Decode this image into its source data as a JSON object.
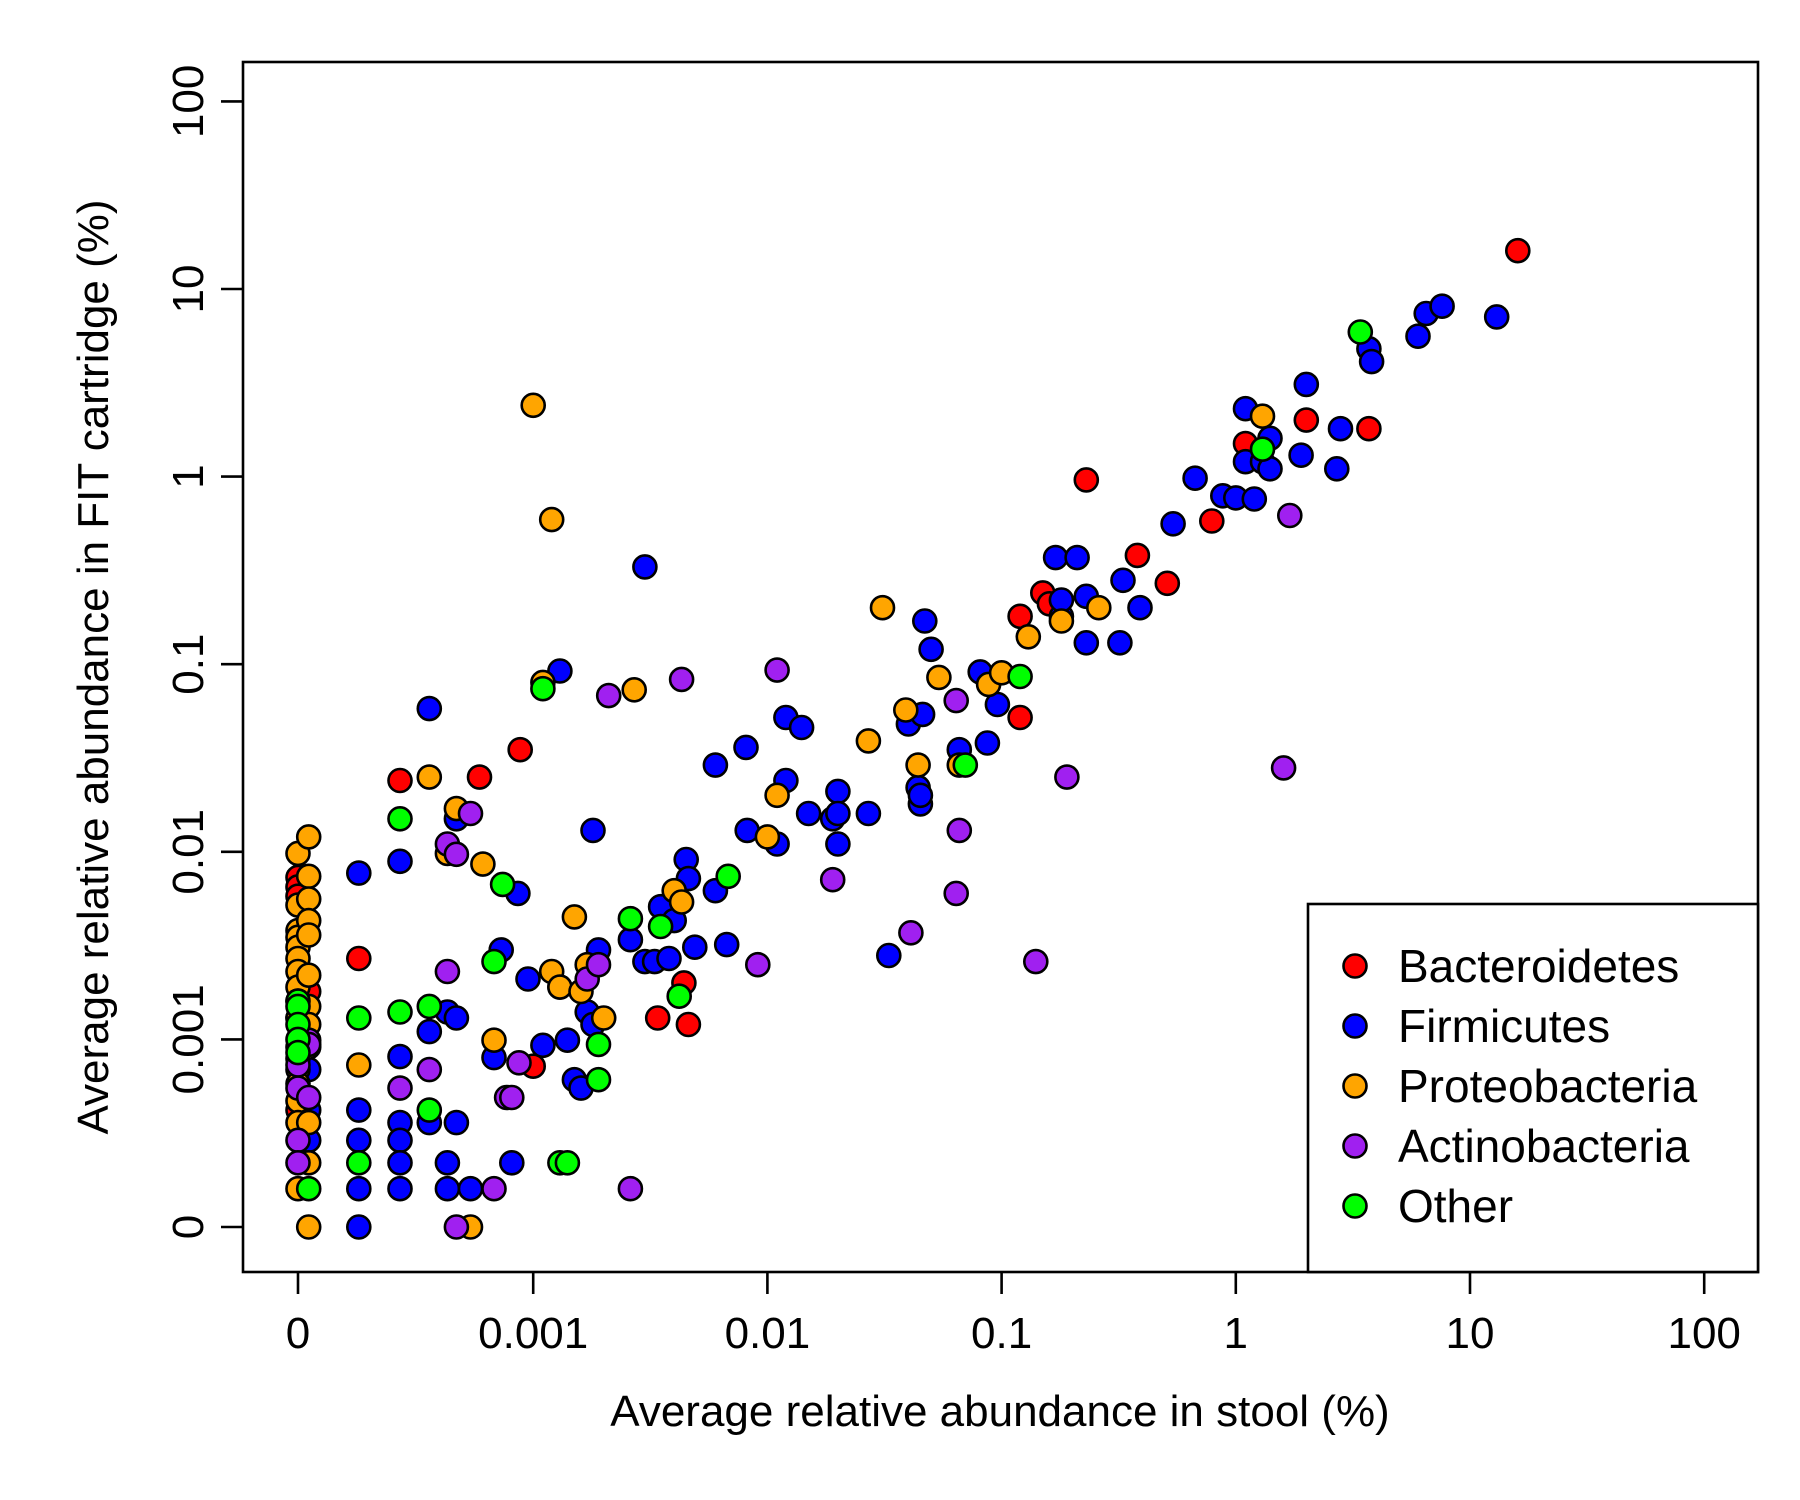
{
  "chart_data": {
    "type": "scatter",
    "title": "",
    "xlabel": "Average relative abundance in stool (%)",
    "ylabel": "Average relative abundance in FIT cartridge (%)",
    "x_scale": "log",
    "y_scale": "log",
    "x_ticks": [
      {
        "value": 0,
        "label": "0"
      },
      {
        "value": 0.001,
        "label": "0.001"
      },
      {
        "value": 0.01,
        "label": "0.01"
      },
      {
        "value": 0.1,
        "label": "0.1"
      },
      {
        "value": 1,
        "label": "1"
      },
      {
        "value": 10,
        "label": "10"
      },
      {
        "value": 100,
        "label": "100"
      }
    ],
    "y_ticks": [
      {
        "value": 0,
        "label": "0"
      },
      {
        "value": 0.001,
        "label": "0.001"
      },
      {
        "value": 0.01,
        "label": "0.01"
      },
      {
        "value": 0.1,
        "label": "0.1"
      },
      {
        "value": 1,
        "label": "1"
      },
      {
        "value": 10,
        "label": "10"
      },
      {
        "value": 100,
        "label": "100"
      }
    ],
    "grid": false,
    "legend_position": "bottom-right",
    "series": [
      {
        "name": "Bacteroidetes",
        "color": "#ff0000",
        "points": [
          [
            0,
            0.0073
          ],
          [
            0,
            0.0065
          ],
          [
            0,
            0.0058
          ],
          [
            0,
            0.00042
          ],
          [
            0.00011,
            0.0018
          ],
          [
            0.00018,
            0.0027
          ],
          [
            0.00027,
            0.024
          ],
          [
            0.00059,
            0.025
          ],
          [
            0.00088,
            0.035
          ],
          [
            0.001,
            0.00072
          ],
          [
            0.0013,
            0.0019
          ],
          [
            0.0034,
            0.0013
          ],
          [
            0.0044,
            0.002
          ],
          [
            0.0046,
            0.0012
          ],
          [
            0.12,
            0.052
          ],
          [
            0.12,
            0.18
          ],
          [
            0.15,
            0.24
          ],
          [
            0.16,
            0.21
          ],
          [
            0.23,
            0.96
          ],
          [
            0.38,
            0.38
          ],
          [
            0.51,
            0.27
          ],
          [
            0.79,
            0.58
          ],
          [
            1.1,
            1.5
          ],
          [
            2.0,
            2.0
          ],
          [
            3.7,
            1.8
          ],
          [
            16,
            16
          ]
        ]
      },
      {
        "name": "Firmicutes",
        "color": "#0000ff",
        "points": [
          [
            0,
            0.0013
          ],
          [
            0.00011,
            0.00069
          ],
          [
            0.00011,
            0.00042
          ],
          [
            0.00011,
            0.00029
          ],
          [
            0.00018,
            0.0077
          ],
          [
            0.00018,
            0.00042
          ],
          [
            0.00018,
            0.00029
          ],
          [
            0.00018,
            0.00016
          ],
          [
            0.00018,
            0
          ],
          [
            0.00027,
            0.0089
          ],
          [
            0.00027,
            0.00081
          ],
          [
            0.00027,
            0.00036
          ],
          [
            0.00027,
            0.00029
          ],
          [
            0.00027,
            0.00022
          ],
          [
            0.00027,
            0.00016
          ],
          [
            0.00036,
            0.058
          ],
          [
            0.00036,
            0.0011
          ],
          [
            0.00036,
            0.00036
          ],
          [
            0.00043,
            0.0014
          ],
          [
            0.00043,
            0.00022
          ],
          [
            0.00043,
            0.00016
          ],
          [
            0.00047,
            0.015
          ],
          [
            0.00047,
            0.0013
          ],
          [
            0.00047,
            0.00036
          ],
          [
            0.00054,
            0.00016
          ],
          [
            0.00068,
            0.0008
          ],
          [
            0.00073,
            0.003
          ],
          [
            0.00081,
            0.00022
          ],
          [
            0.00086,
            0.006
          ],
          [
            0.00095,
            0.0021
          ],
          [
            0.0011,
            0.00093
          ],
          [
            0.0013,
            0.092
          ],
          [
            0.0014,
            0.00099
          ],
          [
            0.0015,
            0.00061
          ],
          [
            0.0016,
            0.00055
          ],
          [
            0.0017,
            0.0014
          ],
          [
            0.0018,
            0.013
          ],
          [
            0.0018,
            0.0012
          ],
          [
            0.0019,
            0.003
          ],
          [
            0.0026,
            0.0034
          ],
          [
            0.003,
            0.33
          ],
          [
            0.003,
            0.0026
          ],
          [
            0.0033,
            0.0026
          ],
          [
            0.0035,
            0.0051
          ],
          [
            0.0038,
            0.0027
          ],
          [
            0.004,
            0.0043
          ],
          [
            0.0045,
            0.0091
          ],
          [
            0.0046,
            0.0072
          ],
          [
            0.0049,
            0.0031
          ],
          [
            0.006,
            0.0062
          ],
          [
            0.006,
            0.029
          ],
          [
            0.0067,
            0.0032
          ],
          [
            0.0081,
            0.036
          ],
          [
            0.0082,
            0.013
          ],
          [
            0.011,
            0.011
          ],
          [
            0.012,
            0.024
          ],
          [
            0.012,
            0.052
          ],
          [
            0.014,
            0.046
          ],
          [
            0.015,
            0.016
          ],
          [
            0.019,
            0.015
          ],
          [
            0.02,
            0.021
          ],
          [
            0.02,
            0.016
          ],
          [
            0.02,
            0.011
          ],
          [
            0.027,
            0.016
          ],
          [
            0.033,
            0.0028
          ],
          [
            0.04,
            0.048
          ],
          [
            0.044,
            0.022
          ],
          [
            0.045,
            0.018
          ],
          [
            0.045,
            0.02
          ],
          [
            0.046,
            0.054
          ],
          [
            0.047,
            0.17
          ],
          [
            0.05,
            0.12
          ],
          [
            0.066,
            0.035
          ],
          [
            0.081,
            0.091
          ],
          [
            0.087,
            0.038
          ],
          [
            0.096,
            0.061
          ],
          [
            0.17,
            0.37
          ],
          [
            0.18,
            0.18
          ],
          [
            0.18,
            0.22
          ],
          [
            0.21,
            0.37
          ],
          [
            0.23,
            0.13
          ],
          [
            0.23,
            0.23
          ],
          [
            0.32,
            0.13
          ],
          [
            0.33,
            0.28
          ],
          [
            0.39,
            0.2
          ],
          [
            0.54,
            0.56
          ],
          [
            0.67,
            0.98
          ],
          [
            0.88,
            0.79
          ],
          [
            1.0,
            0.77
          ],
          [
            1.1,
            2.3
          ],
          [
            1.1,
            1.2
          ],
          [
            1.2,
            0.76
          ],
          [
            1.3,
            1.2
          ],
          [
            1.4,
            1.1
          ],
          [
            1.4,
            1.6
          ],
          [
            1.9,
            1.3
          ],
          [
            2.0,
            3.1
          ],
          [
            2.7,
            1.1
          ],
          [
            2.8,
            1.8
          ],
          [
            3.7,
            4.8
          ],
          [
            3.8,
            4.1
          ],
          [
            6.0,
            5.6
          ],
          [
            6.5,
            7.4
          ],
          [
            7.6,
            8.1
          ],
          [
            13,
            7.1
          ]
        ]
      },
      {
        "name": "Proteobacteria",
        "color": "#ffa500",
        "points": [
          [
            0,
            0.0098
          ],
          [
            0,
            0.0052
          ],
          [
            0,
            0.0038
          ],
          [
            0,
            0.0035
          ],
          [
            0,
            0.0031
          ],
          [
            0,
            0.0027
          ],
          [
            0,
            0.0023
          ],
          [
            0,
            0.0019
          ],
          [
            0,
            0.0016
          ],
          [
            0,
            0.0013
          ],
          [
            0,
            0.00091
          ],
          [
            0,
            0.00079
          ],
          [
            0,
            0.00069
          ],
          [
            0,
            0.00058
          ],
          [
            0,
            0.00047
          ],
          [
            0,
            0.00036
          ],
          [
            0,
            0.00016
          ],
          [
            0.00011,
            0.012
          ],
          [
            0.00011,
            0.0074
          ],
          [
            0.00011,
            0.0056
          ],
          [
            0.00011,
            0.0043
          ],
          [
            0.00011,
            0.0036
          ],
          [
            0.00011,
            0.0022
          ],
          [
            0.00011,
            0.0015
          ],
          [
            0.00011,
            0.0012
          ],
          [
            0.00011,
            0.00091
          ],
          [
            0.00011,
            0.00036
          ],
          [
            0.00011,
            0.00022
          ],
          [
            0.00011,
            0
          ],
          [
            0.00018,
            0.00073
          ],
          [
            0.00036,
            0.025
          ],
          [
            0.00043,
            0.0098
          ],
          [
            0.00047,
            0.017
          ],
          [
            0.00054,
            0
          ],
          [
            0.00061,
            0.0086
          ],
          [
            0.00068,
            0.00099
          ],
          [
            0.001,
            2.4
          ],
          [
            0.0011,
            0.08
          ],
          [
            0.0012,
            0.59
          ],
          [
            0.0012,
            0.0023
          ],
          [
            0.0013,
            0.0019
          ],
          [
            0.0015,
            0.0045
          ],
          [
            0.0016,
            0.0018
          ],
          [
            0.0017,
            0.0025
          ],
          [
            0.002,
            0.0013
          ],
          [
            0.0027,
            0.073
          ],
          [
            0.004,
            0.0062
          ],
          [
            0.0043,
            0.0054
          ],
          [
            0.01,
            0.012
          ],
          [
            0.011,
            0.02
          ],
          [
            0.027,
            0.039
          ],
          [
            0.031,
            0.2
          ],
          [
            0.039,
            0.057
          ],
          [
            0.044,
            0.029
          ],
          [
            0.054,
            0.085
          ],
          [
            0.066,
            0.029
          ],
          [
            0.088,
            0.078
          ],
          [
            0.1,
            0.09
          ],
          [
            0.13,
            0.14
          ],
          [
            0.18,
            0.17
          ],
          [
            0.26,
            0.2
          ],
          [
            1.3,
            2.1
          ]
        ]
      },
      {
        "name": "Actinobacteria",
        "color": "#a020f0",
        "points": [
          [
            0,
            0.00073
          ],
          [
            0,
            0.00055
          ],
          [
            0,
            0.00029
          ],
          [
            0,
            0.00022
          ],
          [
            0.00011,
            0.00099
          ],
          [
            0.00011,
            0.00094
          ],
          [
            0.00011,
            0.00049
          ],
          [
            0.00027,
            0.00055
          ],
          [
            0.00036,
            0.00069
          ],
          [
            0.00043,
            0.011
          ],
          [
            0.00043,
            0.0023
          ],
          [
            0.00047,
            0.0097
          ],
          [
            0.00047,
            0
          ],
          [
            0.00054,
            0.016
          ],
          [
            0.00068,
            0.00016
          ],
          [
            0.00077,
            0.00049
          ],
          [
            0.00081,
            0.00049
          ],
          [
            0.00087,
            0.00075
          ],
          [
            0.0017,
            0.0021
          ],
          [
            0.0019,
            0.0025
          ],
          [
            0.0021,
            0.068
          ],
          [
            0.0026,
            0.00016
          ],
          [
            0.0043,
            0.083
          ],
          [
            0.0091,
            0.0025
          ],
          [
            0.011,
            0.093
          ],
          [
            0.019,
            0.0071
          ],
          [
            0.041,
            0.0037
          ],
          [
            0.064,
            0.064
          ],
          [
            0.064,
            0.006
          ],
          [
            0.066,
            0.013
          ],
          [
            0.14,
            0.0026
          ],
          [
            0.19,
            0.025
          ],
          [
            1.6,
            0.028
          ],
          [
            1.7,
            0.62
          ]
        ]
      },
      {
        "name": "Other",
        "color": "#00ff00",
        "points": [
          [
            0,
            0.0016
          ],
          [
            0,
            0.0015
          ],
          [
            0,
            0.0012
          ],
          [
            0,
            0.001
          ],
          [
            0,
            0.00085
          ],
          [
            0.00011,
            0.00016
          ],
          [
            0.00018,
            0.0013
          ],
          [
            0.00018,
            0.00022
          ],
          [
            0.00027,
            0.015
          ],
          [
            0.00027,
            0.0014
          ],
          [
            0.00036,
            0.0015
          ],
          [
            0.00036,
            0.00042
          ],
          [
            0.00068,
            0.0026
          ],
          [
            0.00074,
            0.0067
          ],
          [
            0.0011,
            0.074
          ],
          [
            0.0013,
            0.00022
          ],
          [
            0.0014,
            0.00022
          ],
          [
            0.0019,
            0.00094
          ],
          [
            0.0019,
            0.00061
          ],
          [
            0.0026,
            0.0044
          ],
          [
            0.0035,
            0.004
          ],
          [
            0.0042,
            0.0017
          ],
          [
            0.0068,
            0.0074
          ],
          [
            0.07,
            0.029
          ],
          [
            0.12,
            0.086
          ],
          [
            1.3,
            1.4
          ],
          [
            3.4,
            5.9
          ]
        ]
      }
    ]
  }
}
